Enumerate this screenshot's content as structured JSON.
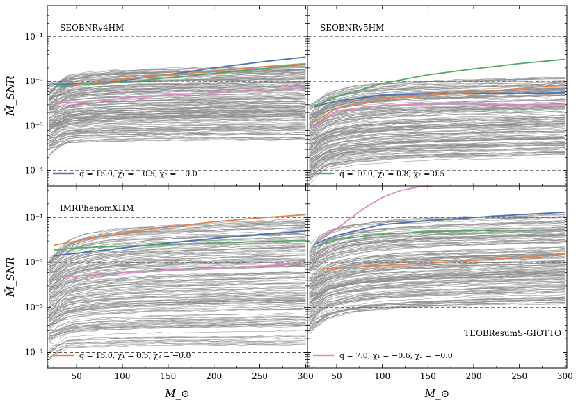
{
  "figure": {
    "xlabel": "M_⊙",
    "ylabel": "M̄_SNR",
    "xticks": [
      50,
      100,
      150,
      200,
      250,
      300
    ],
    "yticks_labels": [
      "10⁻⁴",
      "10⁻³",
      "10⁻²",
      "10⁻¹"
    ]
  },
  "chart_data": [
    {
      "type": "line",
      "title": "SEOBNRv4HM",
      "yscale": "log",
      "xlim": [
        18,
        302
      ],
      "ylim": [
        4.5e-05,
        0.5
      ],
      "reference_lines": [
        0.1,
        0.01,
        0.0001
      ],
      "gray_band": {
        "low_start": 0.00035,
        "low_end": 0.0005,
        "high_start": 0.0105,
        "high_end": 0.022,
        "lines": 170
      },
      "series": [
        {
          "color": "#4c72b0",
          "x": [
            25,
            50,
            100,
            150,
            200,
            250,
            300
          ],
          "y": [
            0.0085,
            0.0088,
            0.0105,
            0.014,
            0.02,
            0.027,
            0.035
          ]
        },
        {
          "color": "#dd8452",
          "x": [
            25,
            50,
            100,
            150,
            200,
            250,
            300
          ],
          "y": [
            0.0075,
            0.0085,
            0.011,
            0.014,
            0.017,
            0.021,
            0.025
          ]
        },
        {
          "color": "#55a868",
          "x": [
            25,
            50,
            100,
            150,
            200,
            250,
            300
          ],
          "y": [
            0.0075,
            0.0082,
            0.0095,
            0.012,
            0.015,
            0.019,
            0.024
          ]
        },
        {
          "color": "#da8bc3",
          "x": [
            25,
            50,
            100,
            150,
            200,
            250,
            300
          ],
          "y": [
            0.0035,
            0.0033,
            0.0042,
            0.0049,
            0.0055,
            0.0063,
            0.0072
          ]
        }
      ],
      "legend": {
        "color": "#4c72b0",
        "label": "q = 15.0, χ₁ = −0.5, χ₂ = −0.0",
        "position": "lower-left"
      }
    },
    {
      "type": "line",
      "title": "SEOBNRv5HM",
      "yscale": "log",
      "xlim": [
        18,
        302
      ],
      "ylim": [
        4.5e-05,
        0.5
      ],
      "reference_lines": [
        0.1,
        0.01,
        0.0001
      ],
      "gray_band": {
        "low_start": 8e-05,
        "low_end": 0.0002,
        "high_start": 0.0035,
        "high_end": 0.013,
        "lines": 170
      },
      "series": [
        {
          "color": "#55a868",
          "x": [
            25,
            50,
            100,
            150,
            200,
            250,
            300
          ],
          "y": [
            0.0028,
            0.0045,
            0.009,
            0.014,
            0.019,
            0.025,
            0.031
          ]
        },
        {
          "color": "#4c72b0",
          "x": [
            25,
            50,
            100,
            150,
            200,
            250,
            300
          ],
          "y": [
            0.0027,
            0.0036,
            0.0049,
            0.0052,
            0.0053,
            0.0054,
            0.0055
          ]
        },
        {
          "color": "#dd8452",
          "x": [
            25,
            50,
            100,
            150,
            200,
            250,
            300
          ],
          "y": [
            0.0012,
            0.0025,
            0.0041,
            0.0048,
            0.0057,
            0.0069,
            0.0082
          ]
        },
        {
          "color": "#da8bc3",
          "x": [
            25,
            50,
            100,
            150,
            200,
            250,
            300
          ],
          "y": [
            0.0009,
            0.0022,
            0.0029,
            0.0031,
            0.0031,
            0.003,
            0.003
          ]
        }
      ],
      "legend": {
        "color": "#55a868",
        "label": "q = 10.0, χ₁ = 0.8, χ₂ = 0.5",
        "position": "lower-left"
      }
    },
    {
      "type": "line",
      "title": "IMRPhenomXHM",
      "yscale": "log",
      "xlim": [
        18,
        302
      ],
      "ylim": [
        4.5e-05,
        0.5
      ],
      "reference_lines": [
        0.1,
        0.01,
        0.0001
      ],
      "gray_band": {
        "low_start": 0.00011,
        "low_end": 0.00014,
        "high_start": 0.015,
        "high_end": 0.09,
        "lines": 170
      },
      "series": [
        {
          "color": "#dd8452",
          "x": [
            25,
            50,
            100,
            150,
            200,
            250,
            300
          ],
          "y": [
            0.024,
            0.03,
            0.045,
            0.062,
            0.08,
            0.098,
            0.115
          ]
        },
        {
          "color": "#4c72b0",
          "x": [
            25,
            50,
            100,
            150,
            200,
            250,
            300
          ],
          "y": [
            0.014,
            0.016,
            0.021,
            0.027,
            0.034,
            0.042,
            0.05
          ]
        },
        {
          "color": "#55a868",
          "x": [
            25,
            50,
            100,
            150,
            200,
            250,
            300
          ],
          "y": [
            0.019,
            0.021,
            0.023,
            0.025,
            0.027,
            0.029,
            0.031
          ]
        },
        {
          "color": "#da8bc3",
          "x": [
            25,
            50,
            100,
            150,
            200,
            250,
            300
          ],
          "y": [
            0.0045,
            0.005,
            0.0059,
            0.0066,
            0.0074,
            0.0083,
            0.0095
          ]
        }
      ],
      "legend": {
        "color": "#dd8452",
        "label": "q = 15.0, χ₁ = 0.5, χ₂ = −0.0",
        "position": "lower-left"
      }
    },
    {
      "type": "line",
      "title": "TEOBResumS-GIOTTO",
      "yscale": "log",
      "xlim": [
        18,
        302
      ],
      "ylim": [
        4.5e-05,
        0.5
      ],
      "reference_lines": [
        0.1,
        0.01,
        0.001
      ],
      "gray_band": {
        "low_start": 0.00035,
        "low_end": 0.0011,
        "high_start": 0.028,
        "high_end": 0.11,
        "lines": 170
      },
      "series": [
        {
          "color": "#da8bc3",
          "x": [
            25,
            40,
            60,
            80,
            100,
            120,
            140,
            155
          ],
          "y": [
            0.025,
            0.04,
            0.08,
            0.16,
            0.28,
            0.4,
            0.48,
            0.5
          ]
        },
        {
          "color": "#4c72b0",
          "x": [
            25,
            50,
            100,
            150,
            200,
            250,
            300
          ],
          "y": [
            0.025,
            0.04,
            0.07,
            0.085,
            0.1,
            0.115,
            0.13
          ]
        },
        {
          "color": "#55a868",
          "x": [
            25,
            50,
            100,
            150,
            200,
            250,
            300
          ],
          "y": [
            0.022,
            0.032,
            0.043,
            0.048,
            0.051,
            0.052,
            0.053
          ]
        },
        {
          "color": "#dd8452",
          "x": [
            25,
            50,
            100,
            150,
            200,
            250,
            300
          ],
          "y": [
            0.007,
            0.0075,
            0.0085,
            0.0095,
            0.011,
            0.013,
            0.015
          ]
        }
      ],
      "legend": {
        "color": "#da8bc3",
        "label": "q = 7.0, χ₁ = −0.6, χ₂ = −0.0",
        "position": "lower-left"
      }
    }
  ]
}
